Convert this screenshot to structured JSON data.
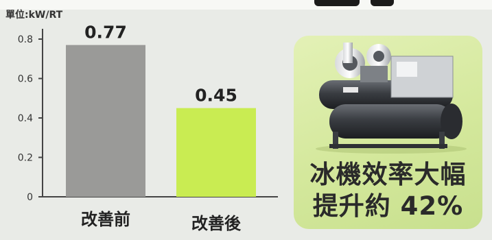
{
  "chart_data": {
    "type": "bar",
    "unit_label": "單位:kW/RT",
    "categories": [
      "改善前",
      "改善後"
    ],
    "values": [
      0.77,
      0.45
    ],
    "value_labels": [
      "0.77",
      "0.45"
    ],
    "ylim": [
      0,
      0.8
    ],
    "yticks": [
      "0",
      "0.2",
      "0.4",
      "0.6",
      "0.8"
    ],
    "ytick_values": [
      0,
      0.2,
      0.4,
      0.6,
      0.8
    ],
    "bar_colors": [
      "#9a9a98",
      "#c9ec52"
    ],
    "grid": false,
    "legend": "none"
  },
  "callout": {
    "line1": "冰機效率大幅",
    "line2": "提升約 42%",
    "image": "chiller-machine-photo"
  },
  "colors": {
    "background": "#e9ebe7",
    "callout_fill": "#d4e89c",
    "axis": "#444444"
  }
}
